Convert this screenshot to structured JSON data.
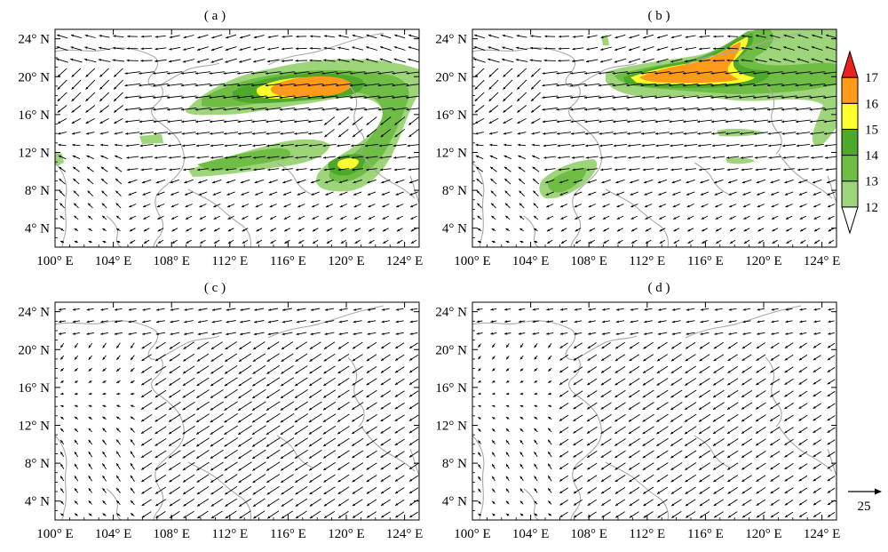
{
  "panels": [
    {
      "label": "( a )",
      "shaded": "a"
    },
    {
      "label": "( b )",
      "shaded": "b"
    },
    {
      "label": "( c )",
      "shaded": ""
    },
    {
      "label": "( d )",
      "shaded": ""
    }
  ],
  "axes": {
    "lon_ticks": [
      "100°E",
      "104°E",
      "108°E",
      "112°E",
      "116°E",
      "120°E",
      "124°E"
    ],
    "lat_ticks": [
      "4°N",
      "8°N",
      "12°N",
      "16°N",
      "20°N",
      "24°N"
    ],
    "lon_range": [
      100,
      125
    ],
    "lat_range": [
      2,
      25
    ]
  },
  "colorbar": {
    "levels": [
      "12",
      "13",
      "14",
      "15",
      "16",
      "17"
    ],
    "colors": [
      "#ffffff",
      "#9fd57a",
      "#6fbd45",
      "#4ea82a",
      "#ffff2e",
      "#ff9a1a",
      "#e8231e"
    ]
  },
  "reference_vector": {
    "label": "25"
  },
  "colors": {
    "coast": "#a8a8a8",
    "arrow": "#000000"
  }
}
